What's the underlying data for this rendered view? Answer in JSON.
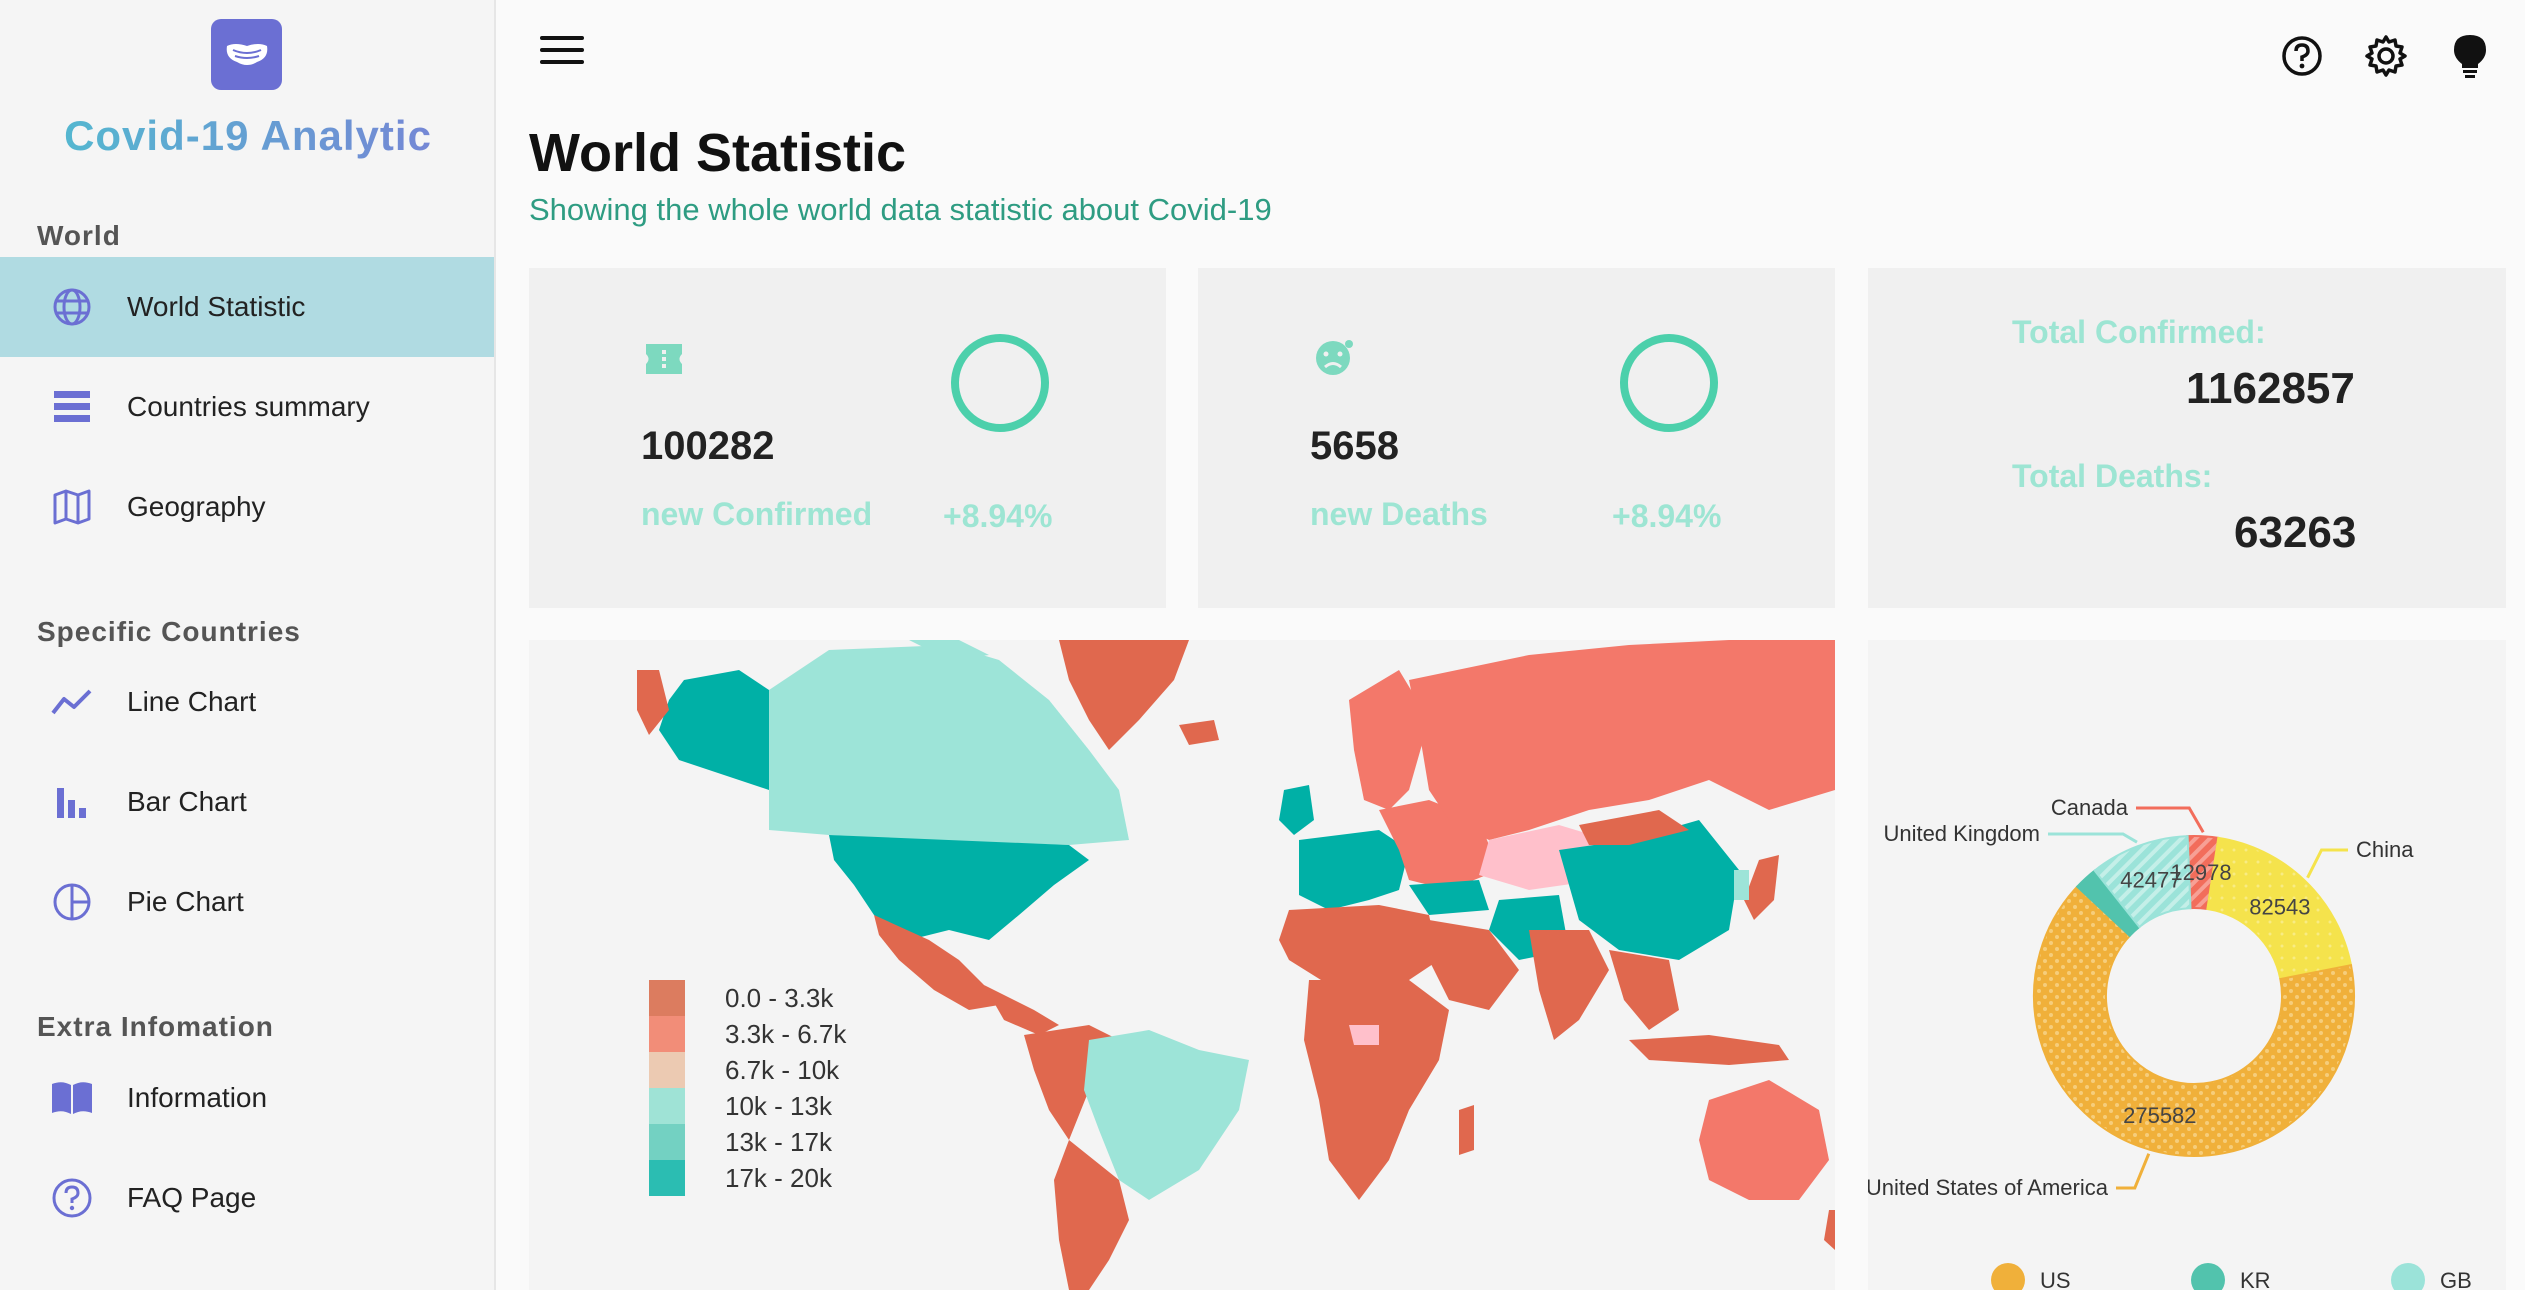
{
  "app": {
    "title": "Covid-19 Analytic",
    "logo_icon": "mask-icon"
  },
  "sidebar": {
    "sections": [
      {
        "title": "World",
        "items": [
          {
            "label": "World Statistic",
            "icon": "globe-icon",
            "active": true
          },
          {
            "label": "Countries summary",
            "icon": "list-icon",
            "active": false
          },
          {
            "label": "Geography",
            "icon": "map-icon",
            "active": false
          }
        ]
      },
      {
        "title": "Specific Countries",
        "items": [
          {
            "label": "Line Chart",
            "icon": "line-chart-icon",
            "active": false
          },
          {
            "label": "Bar Chart",
            "icon": "bar-chart-icon",
            "active": false
          },
          {
            "label": "Pie Chart",
            "icon": "pie-chart-icon",
            "active": false
          }
        ]
      },
      {
        "title": "Extra Infomation",
        "items": [
          {
            "label": "Information",
            "icon": "book-icon",
            "active": false
          },
          {
            "label": "FAQ Page",
            "icon": "help-icon",
            "active": false
          }
        ]
      }
    ]
  },
  "header": {
    "menu_icon": "hamburger-menu-icon",
    "icons": [
      "help-circle-icon",
      "settings-gear-icon",
      "lightbulb-icon"
    ],
    "title": "World Statistic",
    "subtitle": "Showing the whole world data statistic about Covid-19"
  },
  "cards": {
    "confirmed": {
      "icon": "ticket-icon",
      "value": "100282",
      "label": "new Confirmed",
      "pct": "+8.94%"
    },
    "deaths": {
      "icon": "sad-virus-icon",
      "value": "5658",
      "label": "new Deaths",
      "pct": "+8.94%"
    },
    "totals": {
      "confirmed_label": "Total Confirmed:",
      "confirmed_value": "1162857",
      "deaths_label": "Total Deaths:",
      "deaths_value": "63263"
    }
  },
  "map": {
    "legend": [
      {
        "label": "0.0 - 3.3k",
        "color": "#dc7c5f"
      },
      {
        "label": "3.3k - 6.7k",
        "color": "#f28d78"
      },
      {
        "label": "6.7k - 10k",
        "color": "#eccab2"
      },
      {
        "label": "10k - 13k",
        "color": "#9fe3d6"
      },
      {
        "label": "13k - 17k",
        "color": "#73d1c2"
      },
      {
        "label": "17k - 20k",
        "color": "#2bbdb2"
      }
    ],
    "colors": {
      "red": "#e0684e",
      "salmon": "#f3786a",
      "teal": "#00b0a6",
      "mint": "#9de4d8",
      "pink": "#ffc0cb"
    }
  },
  "chart_data": {
    "type": "pie",
    "slices": [
      {
        "label": "United States of America",
        "value": 275582,
        "color": "#f0b03a"
      },
      {
        "label": "China",
        "value": 82543,
        "color": "#f5e34c"
      },
      {
        "label": "Canada",
        "value": 12978,
        "color": "#f26d5b"
      },
      {
        "label": "United Kingdom",
        "value": 42477,
        "color": "#9be3d9"
      },
      {
        "label": "",
        "value": 10000,
        "color": "#52c3ad"
      }
    ],
    "legend": [
      "US",
      "KR",
      "GB"
    ],
    "legend_colors": [
      "#f0b03a",
      "#52c3ad",
      "#9be3d9"
    ]
  }
}
